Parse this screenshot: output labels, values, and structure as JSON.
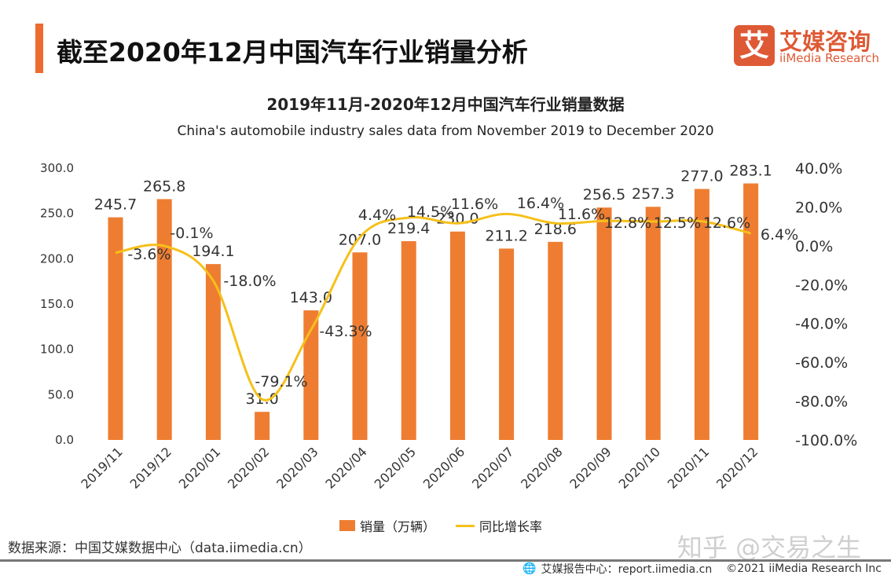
{
  "header": {
    "title": "截至2020年12月中国汽车行业销量分析"
  },
  "logo": {
    "mark": "艾",
    "name_cn": "艾媒咨询",
    "name_en": "iiMedia Research"
  },
  "colors": {
    "accent": "#ee6b2f",
    "bar": "#ee7d31",
    "line": "#f5c01a",
    "logo": "#de5a35"
  },
  "chart_data": {
    "type": "bar+line",
    "title": "2019年11月-2020年12月中国汽车行业销量数据",
    "subtitle": "China's automobile industry sales data from November 2019 to December 2020",
    "categories": [
      "2019/11",
      "2019/12",
      "2020/01",
      "2020/02",
      "2020/03",
      "2020/04",
      "2020/05",
      "2020/06",
      "2020/07",
      "2020/08",
      "2020/09",
      "2020/10",
      "2020/11",
      "2020/12"
    ],
    "series": [
      {
        "name": "销量（万辆）",
        "type": "bar",
        "axis": "left",
        "values": [
          245.7,
          265.8,
          194.1,
          31.0,
          143.0,
          207.0,
          219.4,
          230.0,
          211.2,
          218.6,
          256.5,
          257.3,
          277.0,
          283.1
        ],
        "labels": [
          "245.7",
          "265.8",
          "194.1",
          "31.0",
          "143.0",
          "207.0",
          "219.4",
          "230.0",
          "211.2",
          "218.6",
          "256.5",
          "257.3",
          "277.0",
          "283.1"
        ]
      },
      {
        "name": "同比增长率",
        "type": "line",
        "axis": "right",
        "values": [
          -3.6,
          -0.1,
          -18.0,
          -79.1,
          -43.3,
          4.4,
          14.5,
          11.6,
          16.4,
          11.6,
          12.8,
          12.5,
          12.6,
          6.4
        ],
        "labels": [
          "-3.6%",
          "-0.1%",
          "-18.0%",
          "-79.1%",
          "-43.3%",
          "4.4%",
          "14.5%",
          "11.6%",
          "16.4%",
          "11.6%",
          "12.8%",
          "12.5%",
          "12.6%",
          "6.4%"
        ]
      }
    ],
    "left_axis": {
      "ylim": [
        0,
        300
      ],
      "ticks": [
        "0.0",
        "50.0",
        "100.0",
        "150.0",
        "200.0",
        "250.0",
        "300.0"
      ]
    },
    "right_axis": {
      "ylim": [
        -100,
        40
      ],
      "ticks": [
        "-100.0%",
        "-80.0%",
        "-60.0%",
        "-40.0%",
        "-20.0%",
        "0.0%",
        "20.0%",
        "40.0%"
      ]
    },
    "grid": false,
    "legend": "bottom"
  },
  "legend": {
    "bar": "销量（万辆）",
    "line": "同比增长率"
  },
  "source": "数据来源：中国艾媒数据中心（data.iimedia.cn）",
  "watermark": "知乎 @交易之生",
  "footer": {
    "report": "艾媒报告中心：report.iimedia.cn",
    "copyright": "©2021  iiMedia Research  Inc"
  }
}
